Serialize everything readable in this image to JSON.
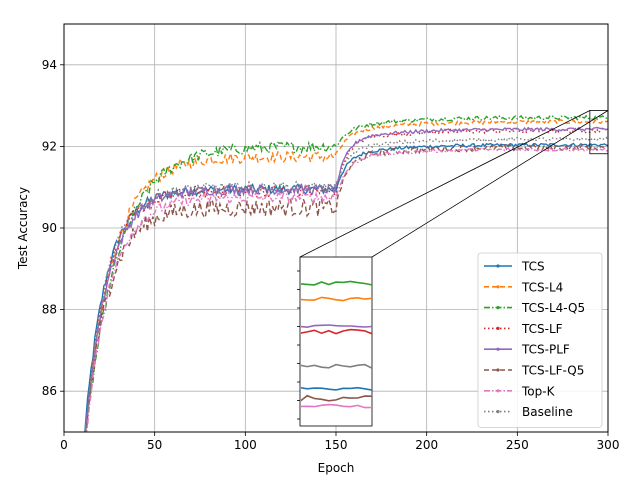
{
  "chart_data": {
    "type": "line",
    "title": "",
    "xlabel": "Epoch",
    "ylabel": "Test Accuracy",
    "xlim": [
      0,
      300
    ],
    "ylim": [
      85,
      95
    ],
    "xticks": [
      "0",
      "50",
      "100",
      "150",
      "200",
      "250",
      "300"
    ],
    "yticks": [
      "86",
      "88",
      "90",
      "92",
      "94"
    ],
    "grid": true,
    "legend_position": "lower right",
    "inset": {
      "x_range": [
        290,
        300
      ],
      "y_range": [
        91.82,
        92.88
      ]
    },
    "series": [
      {
        "name": "TCS",
        "color": "#1f77b4",
        "dash": "solid",
        "final": 92.06,
        "plateau1": 90.95,
        "k": 0.085,
        "noise": 0.12
      },
      {
        "name": "TCS-L4",
        "color": "#ff7f0e",
        "dash": "dashed",
        "final": 92.62,
        "plateau1": 91.75,
        "k": 0.065,
        "noise": 0.14
      },
      {
        "name": "TCS-L4-Q5",
        "color": "#2ca02c",
        "dash": "dashdot",
        "final": 92.72,
        "plateau1": 92.0,
        "k": 0.055,
        "noise": 0.14
      },
      {
        "name": "TCS-LF",
        "color": "#d62728",
        "dash": "dotted",
        "final": 92.42,
        "plateau1": 90.9,
        "k": 0.085,
        "noise": 0.16
      },
      {
        "name": "TCS-PLF",
        "color": "#9467bd",
        "dash": "solid",
        "final": 92.45,
        "plateau1": 90.95,
        "k": 0.08,
        "noise": 0.12
      },
      {
        "name": "TCS-LF-Q5",
        "color": "#8c564b",
        "dash": "dashed",
        "final": 92.0,
        "plateau1": 90.5,
        "k": 0.08,
        "noise": 0.22
      },
      {
        "name": "Top-K",
        "color": "#e377c2",
        "dash": "dashdot",
        "final": 91.95,
        "plateau1": 90.75,
        "k": 0.075,
        "noise": 0.12
      },
      {
        "name": "Baseline",
        "color": "#7f7f7f",
        "dash": "dotted",
        "final": 92.2,
        "plateau1": 91.0,
        "k": 0.085,
        "noise": 0.13
      }
    ]
  }
}
